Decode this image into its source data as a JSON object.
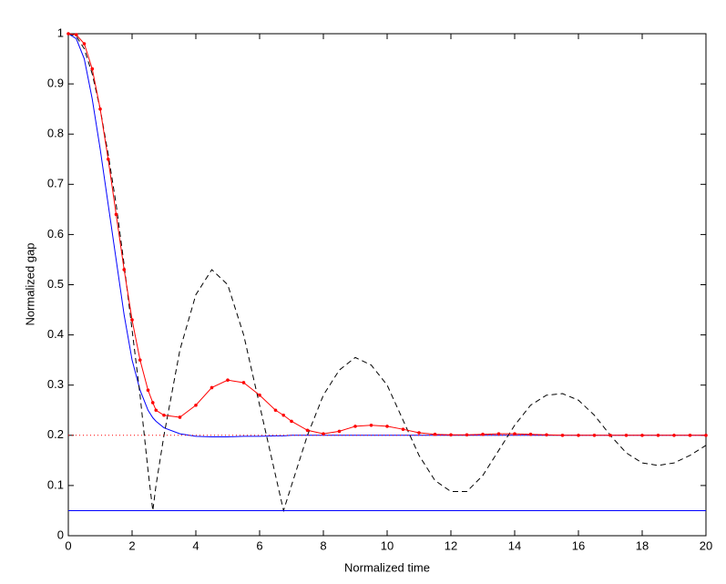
{
  "chart_data": {
    "type": "line",
    "xlabel": "Normalized time",
    "ylabel": "Normalized gap",
    "x": [
      0,
      0.25,
      0.5,
      0.75,
      1,
      1.25,
      1.5,
      1.75,
      2,
      2.25,
      2.5,
      2.65,
      2.75,
      3,
      3.5,
      4,
      4.5,
      5,
      5.5,
      6,
      6.5,
      6.75,
      7,
      7.5,
      8,
      8.5,
      9,
      9.5,
      10,
      10.5,
      11,
      11.5,
      12,
      12.5,
      13,
      13.5,
      14,
      14.5,
      15,
      15.5,
      16,
      16.5,
      17,
      17.5,
      18,
      18.5,
      19,
      19.5,
      20
    ],
    "series": [
      {
        "color": "#0000ff",
        "linestyle": "solid",
        "values": [
          1,
          0.99,
          0.95,
          0.87,
          0.77,
          0.66,
          0.55,
          0.44,
          0.35,
          0.29,
          0.25,
          0.235,
          0.228,
          0.215,
          0.203,
          0.198,
          0.197,
          0.197,
          0.198,
          0.198,
          0.199,
          0.199,
          0.2,
          0.2,
          0.2,
          0.2,
          0.2,
          0.2,
          0.2,
          0.2,
          0.2,
          0.2,
          0.2,
          0.2,
          0.2,
          0.2,
          0.2,
          0.2,
          0.2,
          0.2,
          0.2,
          0.2,
          0.2,
          0.2,
          0.2,
          0.2,
          0.2,
          0.2,
          0.2
        ]
      },
      {
        "color": "#000000",
        "linestyle": "dashed",
        "values": [
          1,
          0.995,
          0.97,
          0.92,
          0.85,
          0.76,
          0.66,
          0.54,
          0.41,
          0.28,
          0.13,
          0.05,
          0.1,
          0.2,
          0.37,
          0.48,
          0.53,
          0.5,
          0.4,
          0.26,
          0.12,
          0.05,
          0.1,
          0.2,
          0.28,
          0.33,
          0.355,
          0.34,
          0.3,
          0.23,
          0.16,
          0.11,
          0.088,
          0.088,
          0.12,
          0.17,
          0.22,
          0.26,
          0.28,
          0.283,
          0.27,
          0.24,
          0.2,
          0.165,
          0.145,
          0.14,
          0.145,
          0.16,
          0.18
        ]
      },
      {
        "color": "#ff0000",
        "linestyle": "solid",
        "marker": "dot",
        "values": [
          1,
          0.998,
          0.98,
          0.93,
          0.85,
          0.75,
          0.64,
          0.53,
          0.43,
          0.35,
          0.29,
          0.265,
          0.25,
          0.24,
          0.236,
          0.26,
          0.295,
          0.31,
          0.305,
          0.28,
          0.25,
          0.24,
          0.228,
          0.21,
          0.203,
          0.208,
          0.218,
          0.22,
          0.218,
          0.212,
          0.205,
          0.202,
          0.201,
          0.201,
          0.202,
          0.203,
          0.203,
          0.202,
          0.201,
          0.2,
          0.2,
          0.2,
          0.2,
          0.2,
          0.2,
          0.2,
          0.2,
          0.2,
          0.2
        ]
      },
      {
        "color": "#0000ff",
        "linestyle": "solid",
        "x": [
          0,
          20
        ],
        "values": [
          0.05,
          0.05
        ]
      },
      {
        "color": "#ff0000",
        "linestyle": "dotted",
        "x": [
          0,
          20
        ],
        "values": [
          0.2,
          0.2
        ]
      }
    ],
    "xlim": [
      0,
      20
    ],
    "xticks": [
      0,
      2,
      4,
      6,
      8,
      10,
      12,
      14,
      16,
      18,
      20
    ],
    "ylim": [
      0,
      1
    ],
    "yticks": [
      0,
      0.1,
      0.2,
      0.3,
      0.4,
      0.5,
      0.6,
      0.7,
      0.8,
      0.9,
      1
    ],
    "grid": false
  }
}
